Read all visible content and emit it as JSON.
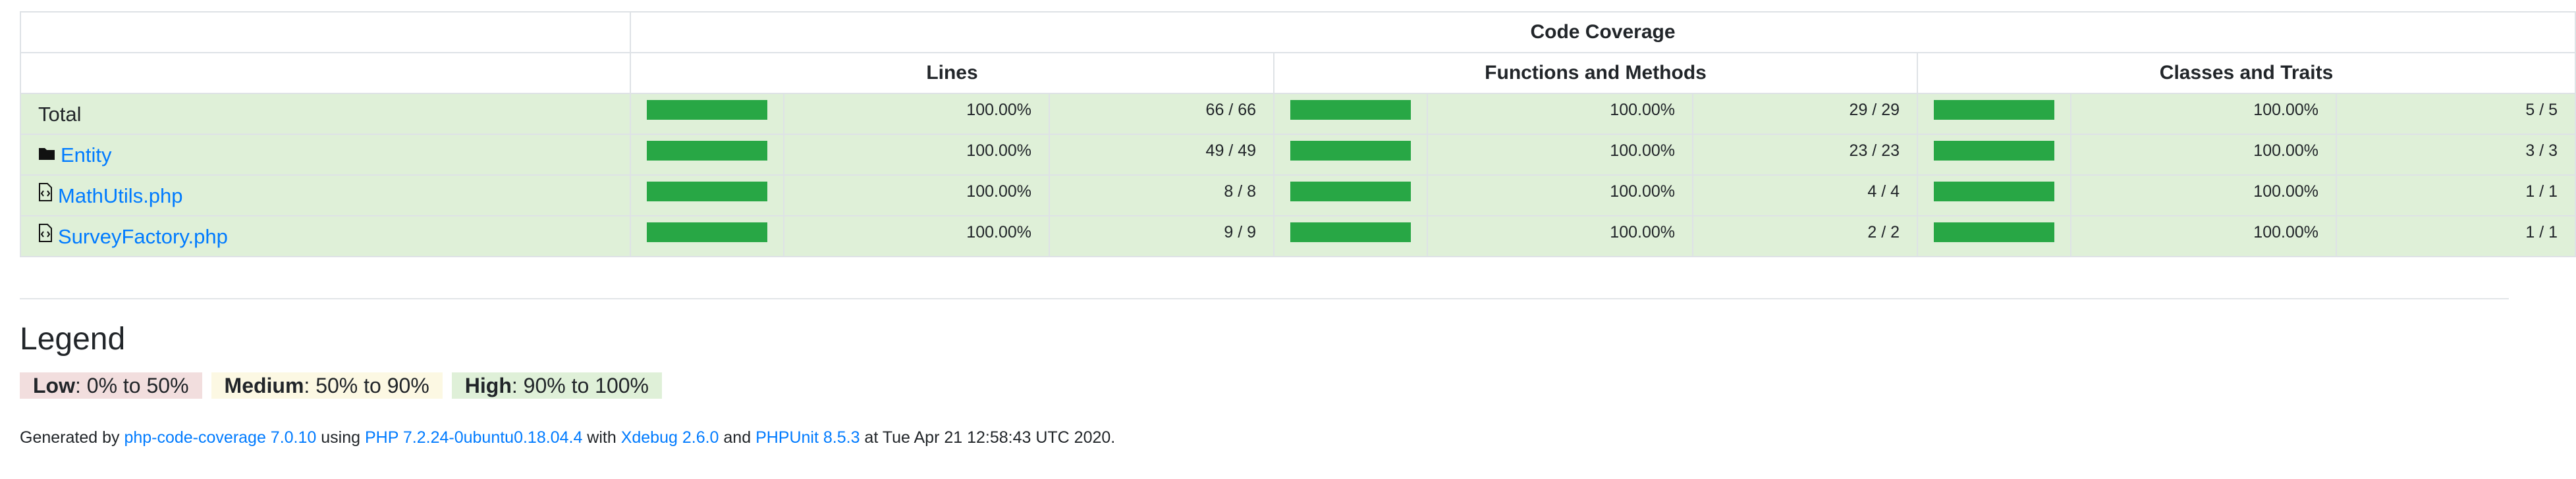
{
  "header": {
    "group_title": "Code Coverage",
    "columns": [
      "Lines",
      "Functions and Methods",
      "Classes and Traits"
    ]
  },
  "rows": [
    {
      "name": "Total",
      "type": "total",
      "lines": {
        "pct": "100.00%",
        "count": "66 / 66",
        "fraction": 1.0
      },
      "functions": {
        "pct": "100.00%",
        "count": "29 / 29",
        "fraction": 1.0
      },
      "classes": {
        "pct": "100.00%",
        "count": "5 / 5",
        "fraction": 1.0
      }
    },
    {
      "name": "Entity",
      "type": "directory",
      "icon": "folder-icon",
      "lines": {
        "pct": "100.00%",
        "count": "49 / 49",
        "fraction": 1.0
      },
      "functions": {
        "pct": "100.00%",
        "count": "23 / 23",
        "fraction": 1.0
      },
      "classes": {
        "pct": "100.00%",
        "count": "3 / 3",
        "fraction": 1.0
      }
    },
    {
      "name": "MathUtils.php",
      "type": "file",
      "icon": "code-file-icon",
      "lines": {
        "pct": "100.00%",
        "count": "8 / 8",
        "fraction": 1.0
      },
      "functions": {
        "pct": "100.00%",
        "count": "4 / 4",
        "fraction": 1.0
      },
      "classes": {
        "pct": "100.00%",
        "count": "1 / 1",
        "fraction": 1.0
      }
    },
    {
      "name": "SurveyFactory.php",
      "type": "file",
      "icon": "code-file-icon",
      "lines": {
        "pct": "100.00%",
        "count": "9 / 9",
        "fraction": 1.0
      },
      "functions": {
        "pct": "100.00%",
        "count": "2 / 2",
        "fraction": 1.0
      },
      "classes": {
        "pct": "100.00%",
        "count": "1 / 1",
        "fraction": 1.0
      }
    }
  ],
  "legend": {
    "title": "Legend",
    "items": [
      {
        "level": "Low",
        "range": ": 0% to 50%",
        "color": "#f2dede"
      },
      {
        "level": "Medium",
        "range": ": 50% to 90%",
        "color": "#fcf8e3"
      },
      {
        "level": "High",
        "range": ": 90% to 100%",
        "color": "#dff0d8"
      }
    ]
  },
  "footer": {
    "prefix": "Generated by ",
    "tool_link": "php-code-coverage 7.0.10",
    "using": " using ",
    "php_link": "PHP 7.2.24-0ubuntu0.18.04.4",
    "with": " with ",
    "xdebug_link": "Xdebug 2.6.0",
    "and": " and ",
    "phpunit_link": "PHPUnit 8.5.3",
    "suffix": " at Tue Apr 21 12:58:43 UTC 2020."
  },
  "colors": {
    "bar_fill": "#28a745",
    "row_success": "#dff0d8",
    "link": "#007bff"
  }
}
